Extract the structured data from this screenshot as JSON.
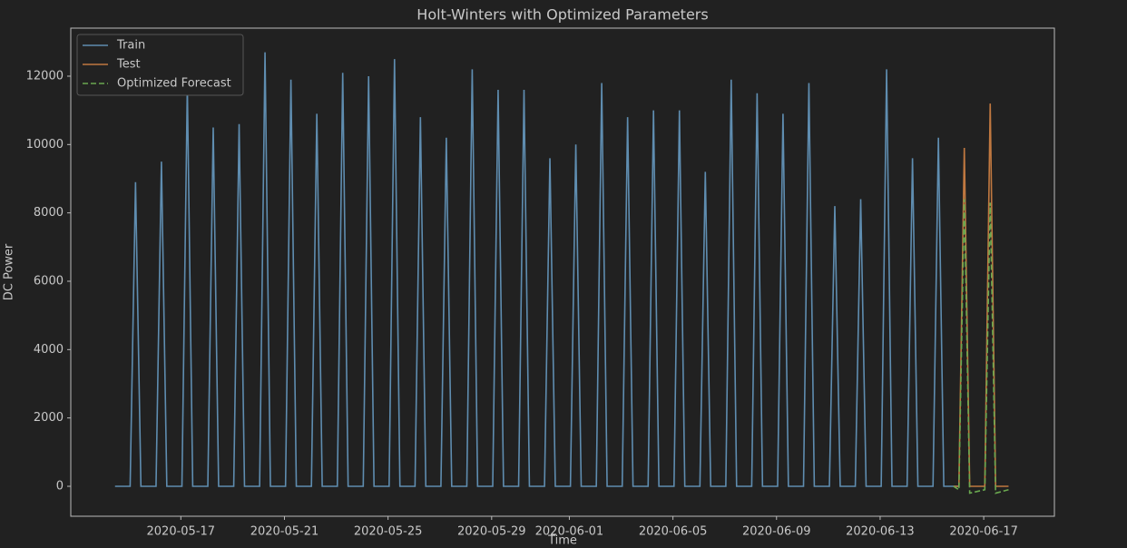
{
  "chart_data": {
    "type": "line",
    "title": "Holt-Winters with Optimized Parameters",
    "xlabel": "Time",
    "ylabel": "DC Power",
    "xlim": [
      "2020-05-12 18:00",
      "2020-06-19 17:30"
    ],
    "xticks": [
      "2020-05-17",
      "2020-05-21",
      "2020-05-25",
      "2020-05-29",
      "2020-06-01",
      "2020-06-05",
      "2020-06-09",
      "2020-06-13",
      "2020-06-17"
    ],
    "ylim": [
      -876,
      13406
    ],
    "yticks": [
      0,
      2000,
      4000,
      6000,
      8000,
      10000,
      12000
    ],
    "grid": false,
    "legend": "upper left",
    "series": [
      {
        "name": "Train",
        "color": "#5f8db0",
        "dash": false,
        "x": [
          "2020-05-14 11:00",
          "2020-05-15 01:00",
          "2020-05-15 04:00",
          "2020-05-15 06:00",
          "2020-05-15 08:00",
          "2020-05-15 11:00",
          "2020-05-16 01:00",
          "2020-05-16 04:00",
          "2020-05-16 06:00",
          "2020-05-16 08:00",
          "2020-05-16 11:00",
          "2020-05-17 01:00",
          "2020-05-17 04:00",
          "2020-05-17 06:00",
          "2020-05-17 08:00",
          "2020-05-17 11:00",
          "2020-05-18 01:00",
          "2020-05-18 04:00",
          "2020-05-18 06:00",
          "2020-05-18 08:00",
          "2020-05-18 11:00",
          "2020-05-19 01:00",
          "2020-05-19 04:00",
          "2020-05-19 06:00",
          "2020-05-19 08:00",
          "2020-05-19 11:00",
          "2020-05-20 01:00",
          "2020-05-20 04:00",
          "2020-05-20 06:00",
          "2020-05-20 08:00",
          "2020-05-20 11:00",
          "2020-05-21 01:00",
          "2020-05-21 04:00",
          "2020-05-21 06:00",
          "2020-05-21 08:00",
          "2020-05-21 11:00",
          "2020-05-22 01:00",
          "2020-05-22 04:00",
          "2020-05-22 06:00",
          "2020-05-22 08:00",
          "2020-05-22 11:00",
          "2020-05-23 01:00",
          "2020-05-23 04:00",
          "2020-05-23 06:00",
          "2020-05-23 08:00",
          "2020-05-23 11:00",
          "2020-05-24 01:00",
          "2020-05-24 04:00",
          "2020-05-24 06:00",
          "2020-05-24 08:00",
          "2020-05-24 11:00",
          "2020-05-25 01:00",
          "2020-05-25 04:00",
          "2020-05-25 06:00",
          "2020-05-25 08:00",
          "2020-05-25 11:00",
          "2020-05-26 01:00",
          "2020-05-26 04:00",
          "2020-05-26 06:00",
          "2020-05-26 08:00",
          "2020-05-26 11:00",
          "2020-05-27 01:00",
          "2020-05-27 04:00",
          "2020-05-27 06:00",
          "2020-05-27 08:00",
          "2020-05-27 11:00",
          "2020-05-28 01:00",
          "2020-05-28 04:00",
          "2020-05-28 06:00",
          "2020-05-28 08:00",
          "2020-05-28 11:00",
          "2020-05-29 01:00",
          "2020-05-29 04:00",
          "2020-05-29 06:00",
          "2020-05-29 08:00",
          "2020-05-29 11:00",
          "2020-05-30 01:00",
          "2020-05-30 04:00",
          "2020-05-30 06:00",
          "2020-05-30 08:00",
          "2020-05-30 11:00",
          "2020-05-31 01:00",
          "2020-05-31 04:00",
          "2020-05-31 06:00",
          "2020-05-31 08:00",
          "2020-05-31 11:00",
          "2020-06-01 01:00",
          "2020-06-01 04:00",
          "2020-06-01 06:00",
          "2020-06-01 08:00",
          "2020-06-01 11:00",
          "2020-06-02 01:00",
          "2020-06-02 04:00",
          "2020-06-02 06:00",
          "2020-06-02 08:00",
          "2020-06-02 11:00",
          "2020-06-03 01:00",
          "2020-06-03 04:00",
          "2020-06-03 06:00",
          "2020-06-03 08:00",
          "2020-06-03 11:00",
          "2020-06-04 01:00",
          "2020-06-04 04:00",
          "2020-06-04 06:00",
          "2020-06-04 08:00",
          "2020-06-04 11:00",
          "2020-06-05 01:00",
          "2020-06-05 04:00",
          "2020-06-05 06:00",
          "2020-06-05 08:00",
          "2020-06-05 11:00",
          "2020-06-06 01:00",
          "2020-06-06 04:00",
          "2020-06-06 06:00",
          "2020-06-06 08:00",
          "2020-06-06 11:00",
          "2020-06-07 01:00",
          "2020-06-07 04:00",
          "2020-06-07 06:00",
          "2020-06-07 08:00",
          "2020-06-07 11:00",
          "2020-06-08 01:00",
          "2020-06-08 04:00",
          "2020-06-08 06:00",
          "2020-06-08 08:00",
          "2020-06-08 11:00",
          "2020-06-09 01:00",
          "2020-06-09 04:00",
          "2020-06-09 06:00",
          "2020-06-09 08:00",
          "2020-06-09 11:00",
          "2020-06-10 01:00",
          "2020-06-10 04:00",
          "2020-06-10 06:00",
          "2020-06-10 08:00",
          "2020-06-10 11:00",
          "2020-06-11 01:00",
          "2020-06-11 04:00",
          "2020-06-11 06:00",
          "2020-06-11 08:00",
          "2020-06-11 11:00",
          "2020-06-12 01:00",
          "2020-06-12 04:00",
          "2020-06-12 06:00",
          "2020-06-12 08:00",
          "2020-06-12 11:00",
          "2020-06-13 01:00",
          "2020-06-13 04:00",
          "2020-06-13 06:00",
          "2020-06-13 08:00",
          "2020-06-13 11:00",
          "2020-06-14 01:00",
          "2020-06-14 04:00",
          "2020-06-14 06:00",
          "2020-06-14 08:00",
          "2020-06-14 11:00",
          "2020-06-15 01:00",
          "2020-06-15 04:00",
          "2020-06-15 06:00",
          "2020-06-15 08:00",
          "2020-06-15 11:00",
          "2020-06-16 01:00"
        ],
        "values": [
          0,
          0,
          5340,
          8900,
          5340,
          0,
          0,
          5700,
          9500,
          5700,
          0,
          0,
          7020,
          11700,
          7020,
          0,
          0,
          6300,
          10500,
          6300,
          0,
          0,
          6360,
          10600,
          6360,
          0,
          0,
          7620,
          12700,
          7620,
          0,
          0,
          7140,
          11900,
          7140,
          0,
          0,
          6540,
          10900,
          6540,
          0,
          0,
          7260,
          12100,
          7260,
          0,
          0,
          7200,
          12000,
          7200,
          0,
          0,
          7500,
          12500,
          7500,
          0,
          0,
          6480,
          10800,
          6480,
          0,
          0,
          6120,
          10200,
          6120,
          0,
          0,
          7320,
          12200,
          7320,
          0,
          0,
          6960,
          11600,
          6960,
          0,
          0,
          6960,
          11600,
          6960,
          0,
          0,
          5760,
          9600,
          5760,
          0,
          0,
          6000,
          10000,
          6000,
          0,
          0,
          7080,
          11800,
          7080,
          0,
          0,
          6480,
          10800,
          6480,
          0,
          0,
          6600,
          11000,
          6600,
          0,
          0,
          6600,
          11000,
          6600,
          0,
          0,
          5520,
          9200,
          5520,
          0,
          0,
          7140,
          11900,
          7140,
          0,
          0,
          6900,
          11500,
          6900,
          0,
          0,
          6540,
          10900,
          6540,
          0,
          0,
          7080,
          11800,
          7080,
          0,
          0,
          4920,
          8200,
          4920,
          0,
          0,
          5040,
          8400,
          5040,
          0,
          0,
          7320,
          12200,
          7320,
          0,
          0,
          5760,
          9600,
          5760,
          0,
          0,
          6120,
          10200,
          6120,
          0,
          0
        ]
      },
      {
        "name": "Test",
        "color": "#c07840",
        "dash": false,
        "x": [
          "2020-06-15 20:00",
          "2020-06-16 01:00",
          "2020-06-16 04:00",
          "2020-06-16 06:00",
          "2020-06-16 08:00",
          "2020-06-16 11:00",
          "2020-06-17 01:00",
          "2020-06-17 04:00",
          "2020-06-17 06:00",
          "2020-06-17 08:00",
          "2020-06-17 11:00",
          "2020-06-17 23:00"
        ],
        "values": [
          0,
          0,
          5940,
          9900,
          5940,
          0,
          0,
          6720,
          11200,
          6720,
          0,
          0
        ]
      },
      {
        "name": "Optimized Forecast",
        "color": "#6aa84f",
        "dash": true,
        "x": [
          "2020-06-15 20:00",
          "2020-06-16 01:00",
          "2020-06-16 04:00",
          "2020-06-16 06:00",
          "2020-06-16 08:00",
          "2020-06-16 11:00",
          "2020-06-17 01:00",
          "2020-06-17 04:00",
          "2020-06-17 06:00",
          "2020-06-17 08:00",
          "2020-06-17 11:00",
          "2020-06-17 23:00"
        ],
        "values": [
          0,
          -100,
          5040,
          8400,
          5040,
          -200,
          -100,
          4980,
          8300,
          4980,
          -200,
          -100
        ]
      }
    ]
  }
}
